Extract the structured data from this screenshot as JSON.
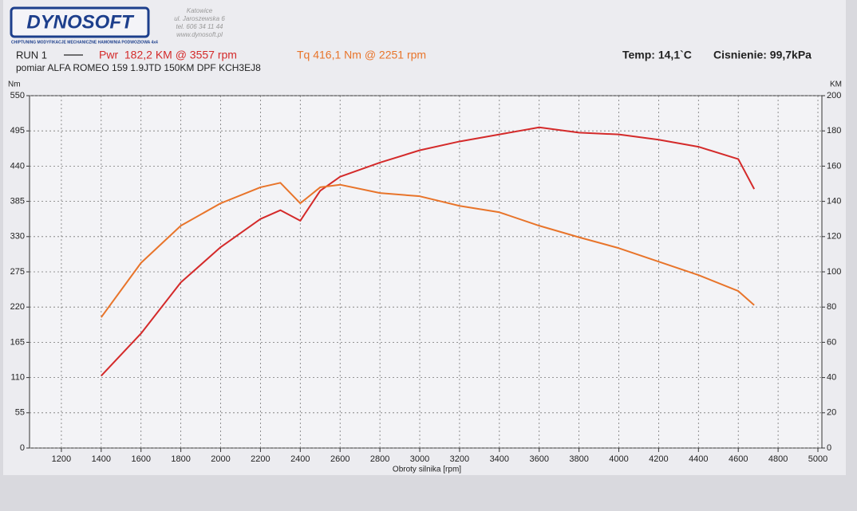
{
  "chart_data": {
    "type": "line",
    "header": {
      "logo": "DYNOSOFT",
      "address": [
        "Katowice",
        "ul. Jaroszewska 6",
        "tel. 606 34 11 44",
        "www.dynosoft.pl"
      ],
      "tagline": "CHIPTUNING   MODYFIKACJE MECHANICZNE   HAMOWNIA PODWOZIOWA 4x4"
    },
    "run": "RUN 1",
    "temperature": "Temp: 14,1`C",
    "pressure": "Cisnienie: 99,7kPa",
    "subtitle": "pomiar ALFA ROMEO 159 1.9JTD 150KM DPF KCH3EJ8",
    "ylabel": "Nm",
    "y2label": "KM",
    "xlabel": "Obroty silnika [rpm]",
    "x": [
      1400,
      1600,
      1800,
      2000,
      2200,
      2300,
      2400,
      2500,
      2600,
      2800,
      3000,
      3200,
      3400,
      3600,
      3800,
      4000,
      4200,
      4400,
      4600,
      4680
    ],
    "series": [
      {
        "name": "Pwr  182,2 KM @ 3557 rpm",
        "color": "#d42a2a",
        "axis": "y2",
        "values": [
          41,
          65,
          94,
          114,
          130,
          135,
          129,
          146,
          154,
          162,
          169,
          174,
          178,
          182,
          179,
          178,
          175,
          171,
          164,
          147
        ]
      },
      {
        "name": "Tq 416,1 Nm @ 2251 rpm",
        "color": "#e8742a",
        "values": [
          204,
          289,
          347,
          382,
          407,
          414,
          382,
          407,
          411,
          398,
          393,
          378,
          368,
          347,
          329,
          312,
          291,
          270,
          245,
          223
        ]
      }
    ],
    "xlim": [
      1040,
      5020
    ],
    "xticks": [
      1200,
      1400,
      1600,
      1800,
      2000,
      2200,
      2400,
      2600,
      2800,
      3000,
      3200,
      3400,
      3600,
      3800,
      4000,
      4200,
      4400,
      4600,
      4800,
      5000
    ],
    "ylim": [
      0,
      550
    ],
    "yticks": [
      0,
      55,
      110,
      165,
      220,
      275,
      330,
      385,
      440,
      495,
      550
    ],
    "y2lim": [
      0,
      200
    ],
    "y2ticks": [
      0,
      20,
      40,
      60,
      80,
      100,
      120,
      140,
      160,
      180,
      200
    ],
    "grid": true
  }
}
